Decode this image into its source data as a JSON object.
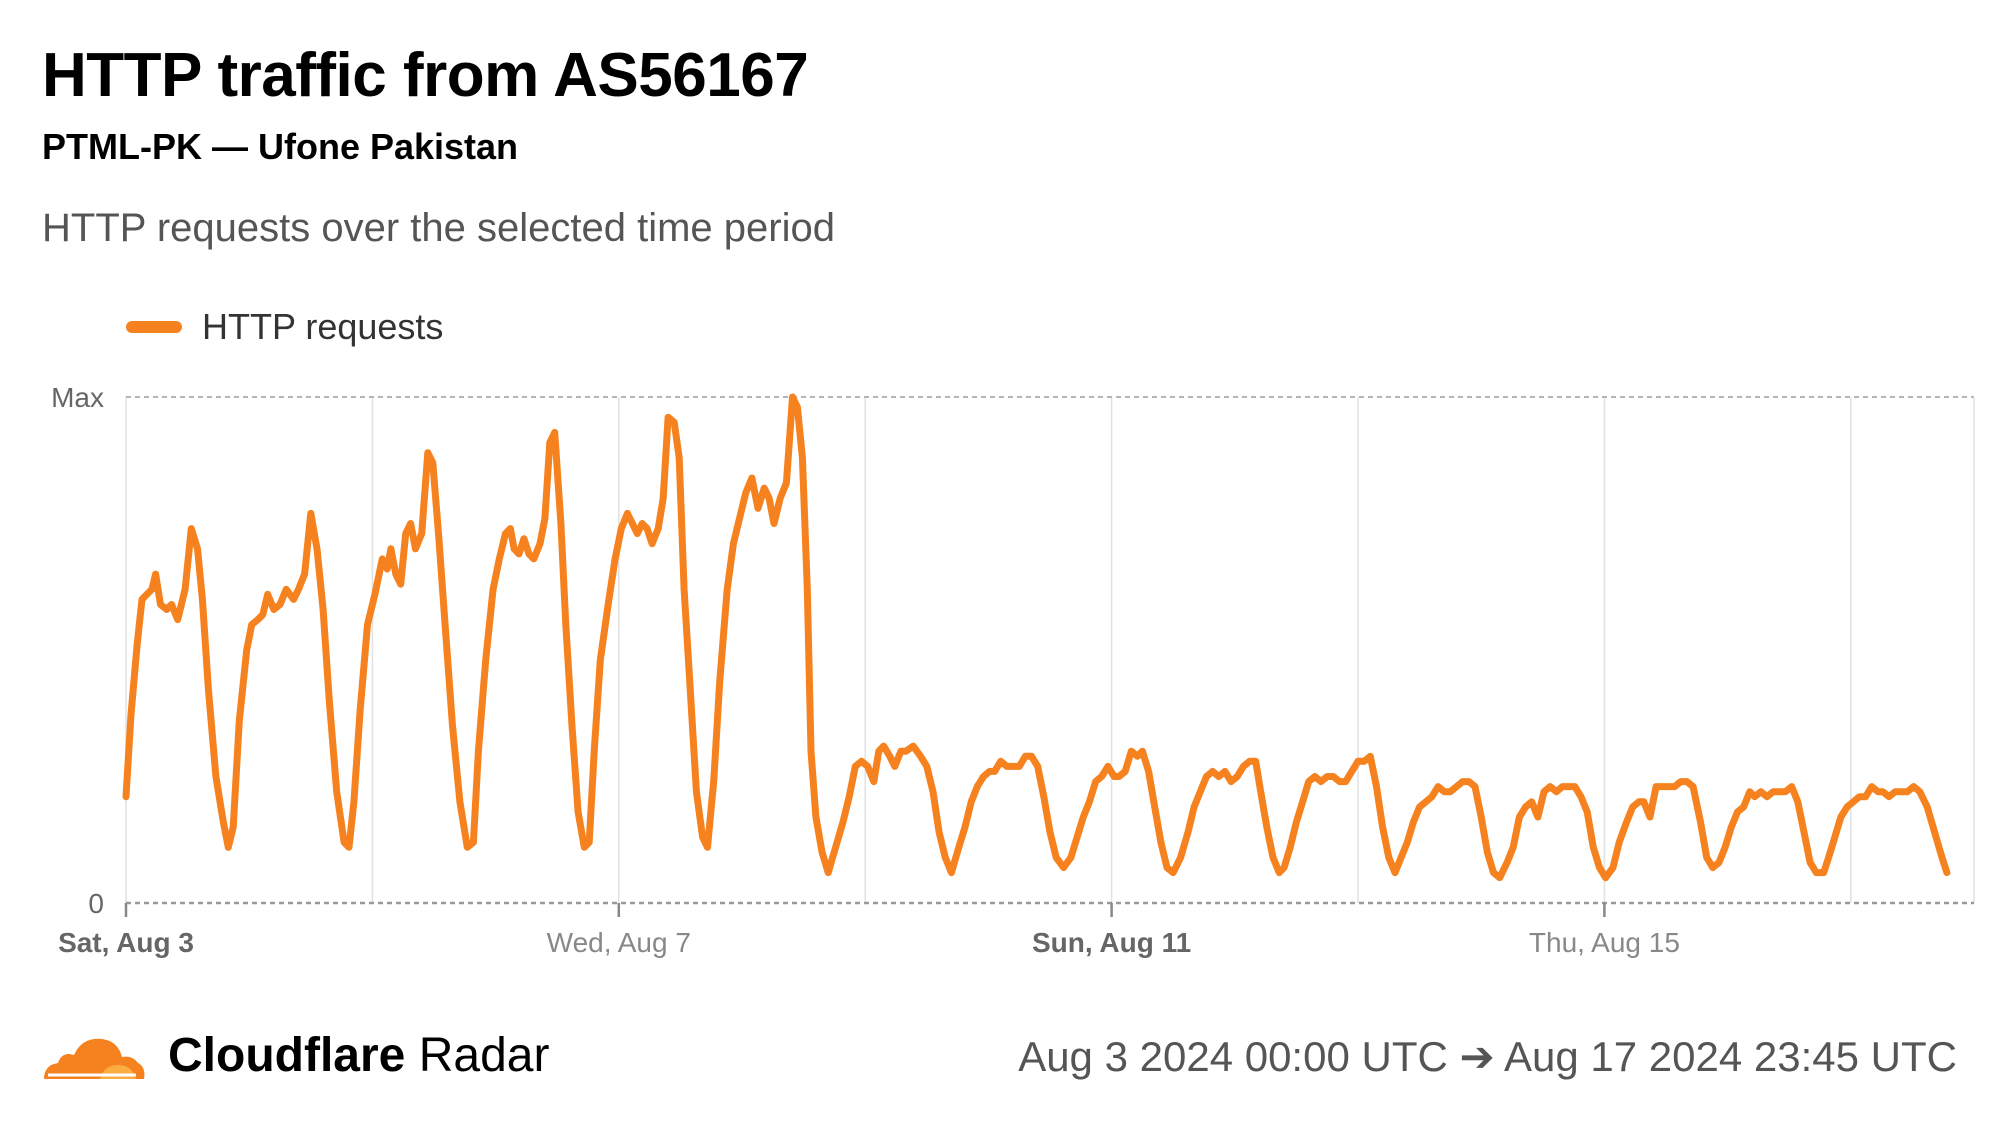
{
  "header": {
    "title": "HTTP traffic from AS56167",
    "subtitle": "PTML-PK — Ufone Pakistan",
    "description": "HTTP requests over the selected time period"
  },
  "legend": {
    "label": "HTTP requests",
    "color": "#f6821f"
  },
  "footer": {
    "brand_bold": "Cloudflare",
    "brand_light": "Radar",
    "range": "Aug 3 2024 00:00 UTC ➔ Aug 17 2024 23:45 UTC"
  },
  "chart_data": {
    "type": "line",
    "x_unit": "days since Aug 3 2024 00:00 UTC",
    "y_ticks": [
      "Max",
      "0"
    ],
    "ylim": [
      0,
      1
    ],
    "x_ticks": [
      {
        "label": "Sat, Aug 3",
        "bold": true
      },
      {
        "label": "Wed, Aug 7",
        "bold": false
      },
      {
        "label": "Sun, Aug 11",
        "bold": true
      },
      {
        "label": "Thu, Aug 15",
        "bold": false
      }
    ],
    "series": [
      {
        "name": "HTTP requests",
        "color": "#f6821f",
        "points": [
          [
            0.0,
            0.21
          ],
          [
            0.04,
            0.37
          ],
          [
            0.09,
            0.51
          ],
          [
            0.13,
            0.6
          ],
          [
            0.17,
            0.61
          ],
          [
            0.21,
            0.62
          ],
          [
            0.24,
            0.65
          ],
          [
            0.28,
            0.59
          ],
          [
            0.33,
            0.58
          ],
          [
            0.37,
            0.59
          ],
          [
            0.42,
            0.56
          ],
          [
            0.48,
            0.62
          ],
          [
            0.53,
            0.74
          ],
          [
            0.58,
            0.7
          ],
          [
            0.62,
            0.6
          ],
          [
            0.67,
            0.42
          ],
          [
            0.73,
            0.25
          ],
          [
            0.79,
            0.16
          ],
          [
            0.83,
            0.11
          ],
          [
            0.87,
            0.15
          ],
          [
            0.92,
            0.36
          ],
          [
            0.98,
            0.5
          ],
          [
            1.02,
            0.55
          ],
          [
            1.07,
            0.56
          ],
          [
            1.11,
            0.57
          ],
          [
            1.15,
            0.61
          ],
          [
            1.2,
            0.58
          ],
          [
            1.25,
            0.59
          ],
          [
            1.3,
            0.62
          ],
          [
            1.36,
            0.6
          ],
          [
            1.4,
            0.62
          ],
          [
            1.45,
            0.65
          ],
          [
            1.5,
            0.77
          ],
          [
            1.55,
            0.7
          ],
          [
            1.6,
            0.58
          ],
          [
            1.65,
            0.4
          ],
          [
            1.71,
            0.22
          ],
          [
            1.77,
            0.12
          ],
          [
            1.81,
            0.11
          ],
          [
            1.85,
            0.2
          ],
          [
            1.9,
            0.38
          ],
          [
            1.96,
            0.55
          ],
          [
            2.02,
            0.61
          ],
          [
            2.08,
            0.68
          ],
          [
            2.12,
            0.66
          ],
          [
            2.15,
            0.7
          ],
          [
            2.19,
            0.65
          ],
          [
            2.23,
            0.63
          ],
          [
            2.27,
            0.73
          ],
          [
            2.31,
            0.75
          ],
          [
            2.35,
            0.7
          ],
          [
            2.4,
            0.73
          ],
          [
            2.45,
            0.89
          ],
          [
            2.49,
            0.87
          ],
          [
            2.54,
            0.72
          ],
          [
            2.59,
            0.55
          ],
          [
            2.65,
            0.35
          ],
          [
            2.71,
            0.2
          ],
          [
            2.77,
            0.11
          ],
          [
            2.82,
            0.12
          ],
          [
            2.86,
            0.3
          ],
          [
            2.92,
            0.48
          ],
          [
            2.98,
            0.62
          ],
          [
            3.03,
            0.68
          ],
          [
            3.08,
            0.73
          ],
          [
            3.12,
            0.74
          ],
          [
            3.15,
            0.7
          ],
          [
            3.19,
            0.69
          ],
          [
            3.23,
            0.72
          ],
          [
            3.27,
            0.69
          ],
          [
            3.31,
            0.68
          ],
          [
            3.36,
            0.71
          ],
          [
            3.4,
            0.76
          ],
          [
            3.44,
            0.91
          ],
          [
            3.48,
            0.93
          ],
          [
            3.53,
            0.75
          ],
          [
            3.57,
            0.55
          ],
          [
            3.62,
            0.35
          ],
          [
            3.67,
            0.18
          ],
          [
            3.72,
            0.11
          ],
          [
            3.76,
            0.12
          ],
          [
            3.8,
            0.3
          ],
          [
            3.85,
            0.48
          ],
          [
            3.92,
            0.6
          ],
          [
            3.97,
            0.68
          ],
          [
            4.02,
            0.74
          ],
          [
            4.07,
            0.77
          ],
          [
            4.11,
            0.75
          ],
          [
            4.15,
            0.73
          ],
          [
            4.19,
            0.75
          ],
          [
            4.23,
            0.74
          ],
          [
            4.27,
            0.71
          ],
          [
            4.32,
            0.74
          ],
          [
            4.36,
            0.8
          ],
          [
            4.4,
            0.96
          ],
          [
            4.45,
            0.95
          ],
          [
            4.49,
            0.88
          ],
          [
            4.53,
            0.62
          ],
          [
            4.58,
            0.42
          ],
          [
            4.63,
            0.22
          ],
          [
            4.68,
            0.13
          ],
          [
            4.72,
            0.11
          ],
          [
            4.77,
            0.24
          ],
          [
            4.82,
            0.44
          ],
          [
            4.88,
            0.62
          ],
          [
            4.93,
            0.71
          ],
          [
            4.98,
            0.76
          ],
          [
            5.03,
            0.81
          ],
          [
            5.08,
            0.84
          ],
          [
            5.13,
            0.78
          ],
          [
            5.18,
            0.82
          ],
          [
            5.22,
            0.8
          ],
          [
            5.26,
            0.75
          ],
          [
            5.31,
            0.8
          ],
          [
            5.36,
            0.83
          ],
          [
            5.41,
            1.0
          ],
          [
            5.45,
            0.98
          ],
          [
            5.49,
            0.88
          ],
          [
            5.53,
            0.62
          ],
          [
            5.56,
            0.3
          ],
          [
            5.6,
            0.17
          ],
          [
            5.65,
            0.1
          ],
          [
            5.7,
            0.06
          ],
          [
            5.76,
            0.11
          ],
          [
            5.82,
            0.16
          ],
          [
            5.87,
            0.21
          ],
          [
            5.92,
            0.27
          ],
          [
            5.97,
            0.28
          ],
          [
            6.02,
            0.27
          ],
          [
            6.07,
            0.24
          ],
          [
            6.11,
            0.3
          ],
          [
            6.15,
            0.31
          ],
          [
            6.2,
            0.29
          ],
          [
            6.24,
            0.27
          ],
          [
            6.29,
            0.3
          ],
          [
            6.33,
            0.3
          ],
          [
            6.39,
            0.31
          ],
          [
            6.45,
            0.29
          ],
          [
            6.5,
            0.27
          ],
          [
            6.55,
            0.22
          ],
          [
            6.6,
            0.14
          ],
          [
            6.65,
            0.09
          ],
          [
            6.7,
            0.06
          ],
          [
            6.76,
            0.11
          ],
          [
            6.81,
            0.15
          ],
          [
            6.86,
            0.2
          ],
          [
            6.91,
            0.23
          ],
          [
            6.96,
            0.25
          ],
          [
            7.01,
            0.26
          ],
          [
            7.05,
            0.26
          ],
          [
            7.1,
            0.28
          ],
          [
            7.15,
            0.27
          ],
          [
            7.2,
            0.27
          ],
          [
            7.25,
            0.27
          ],
          [
            7.3,
            0.29
          ],
          [
            7.35,
            0.29
          ],
          [
            7.4,
            0.27
          ],
          [
            7.45,
            0.21
          ],
          [
            7.5,
            0.14
          ],
          [
            7.55,
            0.09
          ],
          [
            7.61,
            0.07
          ],
          [
            7.67,
            0.09
          ],
          [
            7.72,
            0.13
          ],
          [
            7.77,
            0.17
          ],
          [
            7.82,
            0.2
          ],
          [
            7.87,
            0.24
          ],
          [
            7.92,
            0.25
          ],
          [
            7.97,
            0.27
          ],
          [
            8.02,
            0.25
          ],
          [
            8.06,
            0.25
          ],
          [
            8.11,
            0.26
          ],
          [
            8.16,
            0.3
          ],
          [
            8.21,
            0.29
          ],
          [
            8.25,
            0.3
          ],
          [
            8.3,
            0.26
          ],
          [
            8.35,
            0.19
          ],
          [
            8.4,
            0.12
          ],
          [
            8.45,
            0.07
          ],
          [
            8.5,
            0.06
          ],
          [
            8.56,
            0.09
          ],
          [
            8.62,
            0.14
          ],
          [
            8.67,
            0.19
          ],
          [
            8.72,
            0.22
          ],
          [
            8.77,
            0.25
          ],
          [
            8.82,
            0.26
          ],
          [
            8.87,
            0.25
          ],
          [
            8.92,
            0.26
          ],
          [
            8.97,
            0.24
          ],
          [
            9.02,
            0.25
          ],
          [
            9.07,
            0.27
          ],
          [
            9.12,
            0.28
          ],
          [
            9.17,
            0.28
          ],
          [
            9.21,
            0.22
          ],
          [
            9.26,
            0.15
          ],
          [
            9.31,
            0.09
          ],
          [
            9.36,
            0.06
          ],
          [
            9.4,
            0.07
          ],
          [
            9.45,
            0.11
          ],
          [
            9.5,
            0.16
          ],
          [
            9.55,
            0.2
          ],
          [
            9.6,
            0.24
          ],
          [
            9.65,
            0.25
          ],
          [
            9.7,
            0.24
          ],
          [
            9.75,
            0.25
          ],
          [
            9.8,
            0.25
          ],
          [
            9.85,
            0.24
          ],
          [
            9.9,
            0.24
          ],
          [
            9.95,
            0.26
          ],
          [
            10.0,
            0.28
          ],
          [
            10.05,
            0.28
          ],
          [
            10.1,
            0.29
          ],
          [
            10.15,
            0.23
          ],
          [
            10.2,
            0.15
          ],
          [
            10.25,
            0.09
          ],
          [
            10.3,
            0.06
          ],
          [
            10.35,
            0.09
          ],
          [
            10.4,
            0.12
          ],
          [
            10.45,
            0.16
          ],
          [
            10.5,
            0.19
          ],
          [
            10.55,
            0.2
          ],
          [
            10.6,
            0.21
          ],
          [
            10.65,
            0.23
          ],
          [
            10.7,
            0.22
          ],
          [
            10.75,
            0.22
          ],
          [
            10.8,
            0.23
          ],
          [
            10.85,
            0.24
          ],
          [
            10.9,
            0.24
          ],
          [
            10.95,
            0.23
          ],
          [
            11.0,
            0.17
          ],
          [
            11.05,
            0.1
          ],
          [
            11.1,
            0.06
          ],
          [
            11.15,
            0.05
          ],
          [
            11.21,
            0.08
          ],
          [
            11.26,
            0.11
          ],
          [
            11.31,
            0.17
          ],
          [
            11.36,
            0.19
          ],
          [
            11.41,
            0.2
          ],
          [
            11.46,
            0.17
          ],
          [
            11.51,
            0.22
          ],
          [
            11.56,
            0.23
          ],
          [
            11.61,
            0.22
          ],
          [
            11.66,
            0.23
          ],
          [
            11.71,
            0.23
          ],
          [
            11.76,
            0.23
          ],
          [
            11.81,
            0.21
          ],
          [
            11.86,
            0.18
          ],
          [
            11.91,
            0.11
          ],
          [
            11.96,
            0.07
          ],
          [
            12.01,
            0.05
          ],
          [
            12.07,
            0.07
          ],
          [
            12.12,
            0.12
          ],
          [
            12.18,
            0.16
          ],
          [
            12.23,
            0.19
          ],
          [
            12.28,
            0.2
          ],
          [
            12.32,
            0.2
          ],
          [
            12.37,
            0.17
          ],
          [
            12.42,
            0.23
          ],
          [
            12.47,
            0.23
          ],
          [
            12.52,
            0.23
          ],
          [
            12.57,
            0.23
          ],
          [
            12.62,
            0.24
          ],
          [
            12.67,
            0.24
          ],
          [
            12.72,
            0.23
          ],
          [
            12.78,
            0.16
          ],
          [
            12.83,
            0.09
          ],
          [
            12.88,
            0.07
          ],
          [
            12.93,
            0.08
          ],
          [
            12.98,
            0.11
          ],
          [
            13.03,
            0.15
          ],
          [
            13.08,
            0.18
          ],
          [
            13.13,
            0.19
          ],
          [
            13.18,
            0.22
          ],
          [
            13.22,
            0.21
          ],
          [
            13.27,
            0.22
          ],
          [
            13.32,
            0.21
          ],
          [
            13.37,
            0.22
          ],
          [
            13.42,
            0.22
          ],
          [
            13.47,
            0.22
          ],
          [
            13.52,
            0.23
          ],
          [
            13.57,
            0.2
          ],
          [
            13.62,
            0.14
          ],
          [
            13.67,
            0.08
          ],
          [
            13.72,
            0.06
          ],
          [
            13.78,
            0.06
          ],
          [
            13.82,
            0.09
          ],
          [
            13.87,
            0.13
          ],
          [
            13.92,
            0.17
          ],
          [
            13.97,
            0.19
          ],
          [
            14.02,
            0.2
          ],
          [
            14.07,
            0.21
          ],
          [
            14.12,
            0.21
          ],
          [
            14.17,
            0.23
          ],
          [
            14.22,
            0.22
          ],
          [
            14.26,
            0.22
          ],
          [
            14.31,
            0.21
          ],
          [
            14.36,
            0.22
          ],
          [
            14.41,
            0.22
          ],
          [
            14.46,
            0.22
          ],
          [
            14.51,
            0.23
          ],
          [
            14.56,
            0.22
          ],
          [
            14.62,
            0.19
          ],
          [
            14.68,
            0.14
          ],
          [
            14.74,
            0.09
          ],
          [
            14.78,
            0.06
          ]
        ]
      }
    ]
  }
}
